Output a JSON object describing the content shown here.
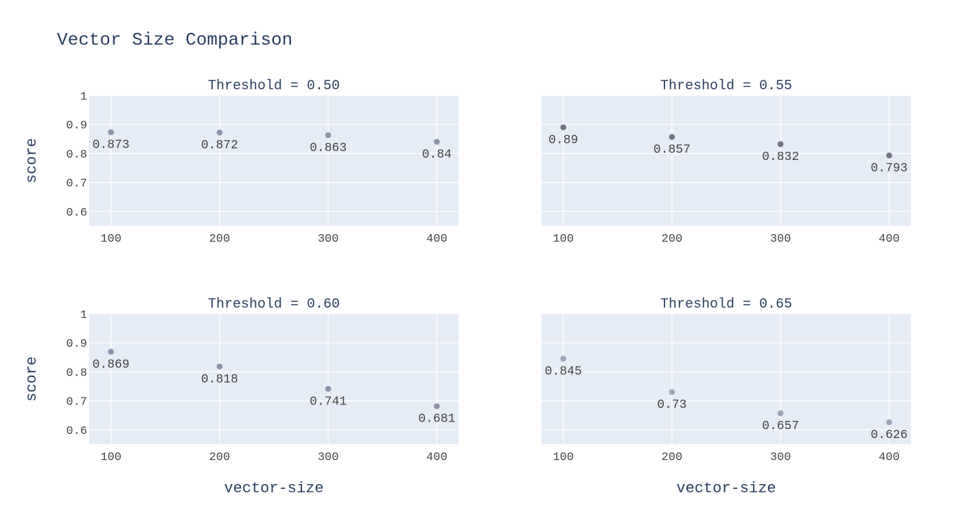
{
  "chart_data": {
    "type": "scatter",
    "title": "Vector Size Comparison",
    "xlabel": "vector-size",
    "ylabel": "score",
    "xlim": [
      80,
      420
    ],
    "ylim": [
      0.55,
      1.0
    ],
    "x_ticks": [
      100,
      200,
      300,
      400
    ],
    "y_ticks": [
      0.6,
      0.7,
      0.8,
      0.9,
      1
    ],
    "y_tick_labels": [
      "0.6",
      "0.7",
      "0.8",
      "0.9",
      "1"
    ],
    "grid": true,
    "marker_colors": [
      "#8a8fa6",
      "#6b6f7e",
      "#8a8fa6",
      "#9aa0b5"
    ],
    "panels": [
      {
        "title": "Threshold = 0.50",
        "x": [
          100,
          200,
          300,
          400
        ],
        "y": [
          0.873,
          0.872,
          0.863,
          0.84
        ],
        "labels": [
          "0.873",
          "0.872",
          "0.863",
          "0.84"
        ]
      },
      {
        "title": "Threshold = 0.55",
        "x": [
          100,
          200,
          300,
          400
        ],
        "y": [
          0.89,
          0.857,
          0.832,
          0.793
        ],
        "labels": [
          "0.89",
          "0.857",
          "0.832",
          "0.793"
        ]
      },
      {
        "title": "Threshold = 0.60",
        "x": [
          100,
          200,
          300,
          400
        ],
        "y": [
          0.869,
          0.818,
          0.741,
          0.681
        ],
        "labels": [
          "0.869",
          "0.818",
          "0.741",
          "0.681"
        ]
      },
      {
        "title": "Threshold = 0.65",
        "x": [
          100,
          200,
          300,
          400
        ],
        "y": [
          0.845,
          0.73,
          0.657,
          0.626
        ],
        "labels": [
          "0.845",
          "0.73",
          "0.657",
          "0.626"
        ]
      }
    ]
  }
}
